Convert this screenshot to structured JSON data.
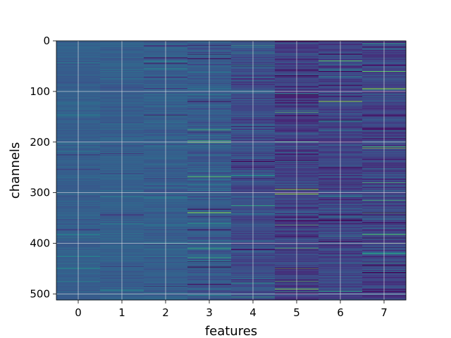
{
  "chart_data": {
    "type": "heatmap",
    "xlabel": "features",
    "ylabel": "channels",
    "x_categories": [
      "0",
      "1",
      "2",
      "3",
      "4",
      "5",
      "6",
      "7"
    ],
    "y_ticks": [
      0,
      100,
      200,
      300,
      400,
      500
    ],
    "y_range": [
      0,
      512
    ],
    "n_rows": 512,
    "colormap": "viridis",
    "grid": true,
    "column_spread": [
      0.12,
      0.13,
      0.16,
      0.24,
      0.28,
      0.3,
      0.28,
      0.3
    ],
    "column_center": [
      0.38,
      0.38,
      0.38,
      0.36,
      0.3,
      0.24,
      0.26,
      0.26
    ]
  }
}
